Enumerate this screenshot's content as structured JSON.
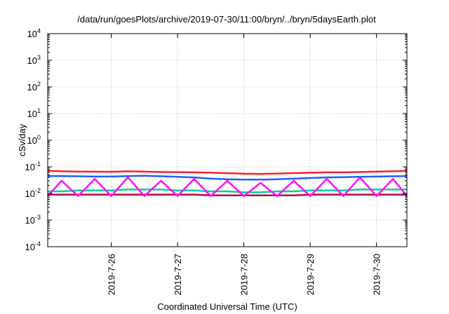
{
  "chart_data": {
    "type": "line",
    "title": "/data/run/goesPlots/archive/2019-07-30/11:00/bryn/../bryn/5daysEarth.plot",
    "xlabel": "Coordinated Universal Time (UTC)",
    "ylabel": "cSv/day",
    "yscale": "log",
    "ylim": [
      0.0001,
      10000
    ],
    "yticks": [
      {
        "value": 0.0001,
        "base": "10",
        "exp": "-4"
      },
      {
        "value": 0.001,
        "base": "10",
        "exp": "-3"
      },
      {
        "value": 0.01,
        "base": "10",
        "exp": "-2"
      },
      {
        "value": 0.1,
        "base": "10",
        "exp": "-1"
      },
      {
        "value": 1,
        "base": "10",
        "exp": "0"
      },
      {
        "value": 10,
        "base": "10",
        "exp": "1"
      },
      {
        "value": 100,
        "base": "10",
        "exp": "2"
      },
      {
        "value": 1000,
        "base": "10",
        "exp": "3"
      },
      {
        "value": 10000,
        "base": "10",
        "exp": "4"
      }
    ],
    "xlim": [
      "2019-07-25T01:00",
      "2019-07-30T11:00"
    ],
    "xticks": [
      {
        "value": "2019-07-26T00:00",
        "label": "2019-7-26"
      },
      {
        "value": "2019-07-27T00:00",
        "label": "2019-7-27"
      },
      {
        "value": "2019-07-28T00:00",
        "label": "2019-7-28"
      },
      {
        "value": "2019-07-29T00:00",
        "label": "2019-7-29"
      },
      {
        "value": "2019-07-30T00:00",
        "label": "2019-7-30"
      }
    ],
    "grid": true,
    "legend": "none",
    "series": [
      {
        "color": "#ff2020",
        "x": [
          "2019-07-25T01:00",
          "2019-07-25T06:00",
          "2019-07-25T12:00",
          "2019-07-25T18:00",
          "2019-07-26T00:00",
          "2019-07-26T06:00",
          "2019-07-26T12:00",
          "2019-07-26T18:00",
          "2019-07-27T00:00",
          "2019-07-27T06:00",
          "2019-07-27T12:00",
          "2019-07-27T18:00",
          "2019-07-28T00:00",
          "2019-07-28T06:00",
          "2019-07-28T12:00",
          "2019-07-28T18:00",
          "2019-07-29T00:00",
          "2019-07-29T06:00",
          "2019-07-29T12:00",
          "2019-07-29T18:00",
          "2019-07-30T00:00",
          "2019-07-30T06:00",
          "2019-07-30T11:00"
        ],
        "y": [
          0.07,
          0.068,
          0.066,
          0.066,
          0.065,
          0.068,
          0.066,
          0.064,
          0.063,
          0.062,
          0.06,
          0.058,
          0.055,
          0.054,
          0.056,
          0.058,
          0.06,
          0.062,
          0.062,
          0.064,
          0.066,
          0.068,
          0.07
        ]
      },
      {
        "color": "#1f5fff",
        "x": [
          "2019-07-25T01:00",
          "2019-07-25T06:00",
          "2019-07-25T12:00",
          "2019-07-25T18:00",
          "2019-07-26T00:00",
          "2019-07-26T06:00",
          "2019-07-26T12:00",
          "2019-07-26T18:00",
          "2019-07-27T00:00",
          "2019-07-27T06:00",
          "2019-07-27T12:00",
          "2019-07-27T18:00",
          "2019-07-28T00:00",
          "2019-07-28T06:00",
          "2019-07-28T12:00",
          "2019-07-28T18:00",
          "2019-07-29T00:00",
          "2019-07-29T06:00",
          "2019-07-29T12:00",
          "2019-07-29T18:00",
          "2019-07-30T00:00",
          "2019-07-30T06:00",
          "2019-07-30T11:00"
        ],
        "y": [
          0.045,
          0.045,
          0.044,
          0.043,
          0.043,
          0.045,
          0.046,
          0.044,
          0.042,
          0.04,
          0.036,
          0.034,
          0.033,
          0.033,
          0.034,
          0.036,
          0.038,
          0.04,
          0.041,
          0.042,
          0.043,
          0.044,
          0.045
        ]
      },
      {
        "color": "#10c8a0",
        "x": [
          "2019-07-25T01:00",
          "2019-07-25T06:00",
          "2019-07-25T12:00",
          "2019-07-25T18:00",
          "2019-07-26T00:00",
          "2019-07-26T06:00",
          "2019-07-26T12:00",
          "2019-07-26T18:00",
          "2019-07-27T00:00",
          "2019-07-27T06:00",
          "2019-07-27T12:00",
          "2019-07-27T18:00",
          "2019-07-28T00:00",
          "2019-07-28T06:00",
          "2019-07-28T12:00",
          "2019-07-28T18:00",
          "2019-07-29T00:00",
          "2019-07-29T06:00",
          "2019-07-29T12:00",
          "2019-07-29T18:00",
          "2019-07-30T00:00",
          "2019-07-30T06:00",
          "2019-07-30T11:00"
        ],
        "y": [
          0.012,
          0.012,
          0.013,
          0.013,
          0.013,
          0.014,
          0.014,
          0.014,
          0.013,
          0.013,
          0.012,
          0.012,
          0.011,
          0.011,
          0.012,
          0.012,
          0.013,
          0.013,
          0.013,
          0.014,
          0.014,
          0.014,
          0.014
        ]
      },
      {
        "color": "#b01040",
        "x": [
          "2019-07-25T01:00",
          "2019-07-25T06:00",
          "2019-07-25T12:00",
          "2019-07-25T18:00",
          "2019-07-26T00:00",
          "2019-07-26T06:00",
          "2019-07-26T12:00",
          "2019-07-26T18:00",
          "2019-07-27T00:00",
          "2019-07-27T06:00",
          "2019-07-27T12:00",
          "2019-07-27T18:00",
          "2019-07-28T00:00",
          "2019-07-28T06:00",
          "2019-07-28T12:00",
          "2019-07-28T18:00",
          "2019-07-29T00:00",
          "2019-07-29T06:00",
          "2019-07-29T12:00",
          "2019-07-29T18:00",
          "2019-07-30T00:00",
          "2019-07-30T06:00",
          "2019-07-30T11:00"
        ],
        "y": [
          0.009,
          0.009,
          0.009,
          0.009,
          0.009,
          0.009,
          0.009,
          0.009,
          0.009,
          0.009,
          0.0085,
          0.0085,
          0.0085,
          0.0085,
          0.0085,
          0.0085,
          0.009,
          0.009,
          0.009,
          0.009,
          0.009,
          0.009,
          0.009
        ]
      },
      {
        "color": "#ff10ff",
        "x": [
          "2019-07-25T01:00",
          "2019-07-25T06:00",
          "2019-07-25T12:00",
          "2019-07-25T18:00",
          "2019-07-26T00:00",
          "2019-07-26T06:00",
          "2019-07-26T12:00",
          "2019-07-26T18:00",
          "2019-07-27T00:00",
          "2019-07-27T06:00",
          "2019-07-27T12:00",
          "2019-07-27T18:00",
          "2019-07-28T00:00",
          "2019-07-28T06:00",
          "2019-07-28T12:00",
          "2019-07-28T18:00",
          "2019-07-29T00:00",
          "2019-07-29T06:00",
          "2019-07-29T12:00",
          "2019-07-29T18:00",
          "2019-07-30T00:00",
          "2019-07-30T06:00",
          "2019-07-30T11:00"
        ],
        "y": [
          0.008,
          0.03,
          0.008,
          0.035,
          0.008,
          0.04,
          0.008,
          0.03,
          0.008,
          0.035,
          0.008,
          0.03,
          0.008,
          0.025,
          0.008,
          0.03,
          0.008,
          0.035,
          0.008,
          0.04,
          0.008,
          0.035,
          0.008
        ]
      }
    ]
  }
}
